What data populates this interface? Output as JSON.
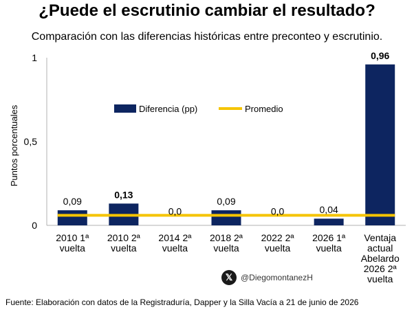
{
  "title": "¿Puede el escrutinio cambiar el resultado?",
  "subtitle": "Comparación con las diferencias históricas entre preconteo y escrutinio.",
  "footer": {
    "source": "Fuente: Elaboración con datos de la Registraduría, Dapper y la Silla Vacía a 21 de junio de 2026",
    "handle": "@DiegomontanezH",
    "handle_icon": "x-logo-icon"
  },
  "colors": {
    "bar": "#0d2560",
    "line": "#f5c400",
    "axis": "#b0b0b0"
  },
  "chart_data": {
    "type": "bar",
    "ylabel": "Puntos porcentuales",
    "xlabel": "",
    "ylim": [
      0,
      1
    ],
    "yticks": [
      {
        "value": 0,
        "label": "0"
      },
      {
        "value": 0.5,
        "label": "0,5"
      },
      {
        "value": 1,
        "label": "1"
      }
    ],
    "categories": [
      [
        "2010 1ª",
        "vuelta"
      ],
      [
        "2010 2ª",
        "vuelta"
      ],
      [
        "2014 2ª",
        "vuelta"
      ],
      [
        "2018 2ª",
        "vuelta"
      ],
      [
        "2022 2ª",
        "vuelta"
      ],
      [
        "2026 1ª",
        "vuelta"
      ],
      [
        "Ventaja",
        "actual",
        "Abelardo",
        "2026 2ª",
        "vuelta"
      ]
    ],
    "series": [
      {
        "name": "Diferencia (pp)",
        "values": [
          0.09,
          0.13,
          0.0,
          0.09,
          0.0,
          0.04,
          0.96
        ],
        "labels": [
          "0,09",
          "0,13",
          "0,0",
          "0,09",
          "0,0",
          "0,04",
          "0,96"
        ],
        "bold_labels": [
          false,
          true,
          false,
          false,
          false,
          false,
          true
        ]
      },
      {
        "name": "Promedio",
        "type": "line",
        "value": 0.06
      }
    ],
    "legend": "upper-left, inside plot",
    "grid": false
  }
}
